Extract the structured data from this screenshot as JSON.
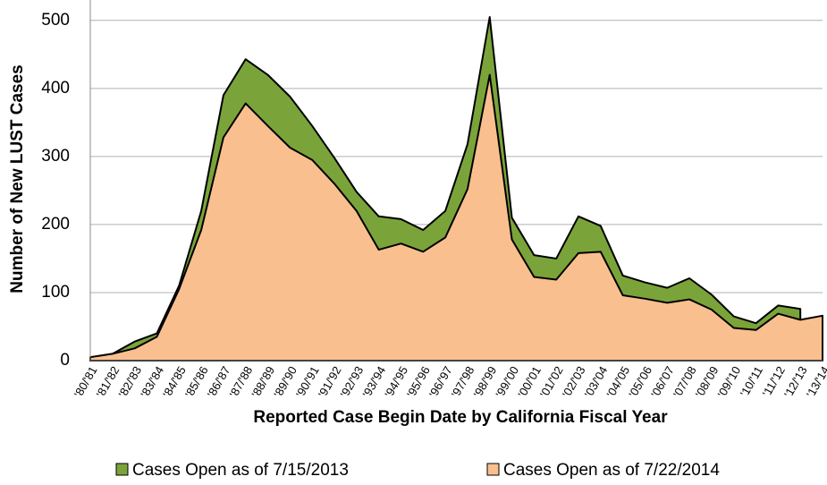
{
  "chart_data": {
    "type": "area",
    "x_label": "Reported Case Begin Date by California Fiscal Year",
    "y_label": "Number of New LUST Cases",
    "categories": [
      "'80/'81",
      "'81/'82",
      "'82/'83",
      "'83/'84",
      "'84/'85",
      "'85/'86",
      "'86/'87",
      "'87/'88",
      "'88/'89",
      "'89/'90",
      "'90/'91",
      "'91/'92",
      "'92/'93",
      "'93/'94",
      "'94/'95",
      "'95/'96",
      "'96/'97",
      "'97/'98",
      "'98/'99",
      "'99/'00",
      "'00/'01",
      "'01/'02",
      "'02/'03",
      "'03/'04",
      "'04/'05",
      "'05/'06",
      "'06/'07",
      "'07/'08",
      "'08/'09",
      "'09/'10",
      "'10/'11",
      "'11/'12",
      "'12/'13",
      "'13/'14"
    ],
    "series": [
      {
        "name": "Cases Open as of 7/15/2013",
        "color": "#7aa43a",
        "values": [
          5,
          10,
          28,
          40,
          110,
          220,
          390,
          443,
          420,
          388,
          345,
          298,
          248,
          212,
          208,
          192,
          220,
          318,
          505,
          210,
          155,
          150,
          212,
          198,
          125,
          115,
          107,
          121,
          97,
          65,
          55,
          81,
          76,
          null
        ]
      },
      {
        "name": "Cases Open as of 7/22/2014",
        "color": "#fabf8f",
        "values": [
          5,
          10,
          18,
          35,
          105,
          192,
          328,
          378,
          345,
          313,
          295,
          260,
          220,
          163,
          172,
          160,
          181,
          252,
          420,
          178,
          123,
          119,
          158,
          160,
          96,
          91,
          85,
          90,
          75,
          48,
          45,
          69,
          60,
          66
        ]
      }
    ],
    "ylim": [
      0,
      530
    ],
    "yticks": [
      0,
      100,
      200,
      300,
      400,
      500
    ],
    "grid": true
  }
}
